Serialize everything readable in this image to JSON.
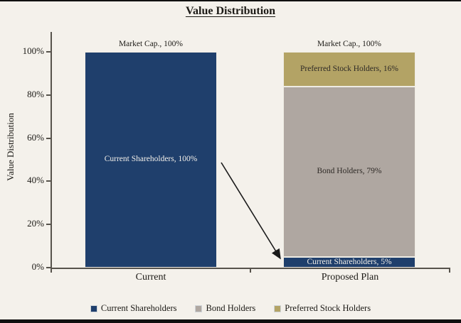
{
  "page": {
    "background": "#F4F1EB",
    "edge_bar_color": "#101010",
    "axis_color": "#57534C",
    "text_color": "#1C1A16"
  },
  "title": "Value Distribution",
  "chart_data": {
    "type": "bar",
    "stacked": true,
    "title": "Value Distribution",
    "ylabel": "Value Distribution",
    "ylim": [
      0,
      100
    ],
    "yticks": [
      "0%",
      "20%",
      "40%",
      "60%",
      "80%",
      "100%"
    ],
    "yticks_values": [
      0,
      20,
      40,
      60,
      80,
      100
    ],
    "grid": false,
    "legend_position": "bottom",
    "categories": [
      "Current",
      "Proposed Plan"
    ],
    "series": [
      {
        "name": "Current Shareholders",
        "color": "#1F3F6C",
        "text_color": "#F2EFE9",
        "values": [
          100,
          5
        ],
        "labels": [
          "Current Shareholders, 100%",
          "Current Shareholders, 5%"
        ]
      },
      {
        "name": "Bond Holders",
        "color": "#AFA7A1",
        "text_color": "#2E2A26",
        "values": [
          0,
          79
        ],
        "labels": [
          null,
          "Bond Holders, 79%"
        ]
      },
      {
        "name": "Preferred Stock Holders",
        "color": "#B3A365",
        "text_color": "#2E2A26",
        "values": [
          0,
          16
        ],
        "labels": [
          null,
          "Preferred Stock Holders, 16%"
        ]
      }
    ],
    "bar_total_labels": [
      "Market Cap., 100%",
      "Market Cap., 100%"
    ],
    "legend": [
      "Current Shareholders",
      "Bond Holders",
      "Preferred Stock Holders"
    ],
    "annotation_arrow": {
      "type": "arrow",
      "from": "Current Shareholders, 100% (Current bar)",
      "to": "Current Shareholders, 5% (Proposed Plan bar)"
    }
  }
}
